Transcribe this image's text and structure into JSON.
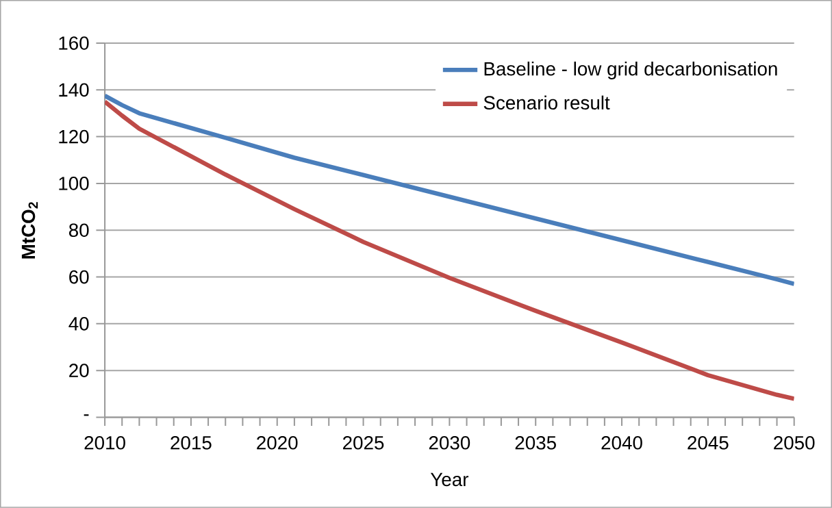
{
  "chart_data": {
    "type": "line",
    "xlabel": "Year",
    "ylabel": "MtCO$_{2}$",
    "x": [
      2010,
      2011,
      2012,
      2017,
      2021,
      2025,
      2030,
      2035,
      2040,
      2045,
      2049,
      2050
    ],
    "series": [
      {
        "name": "Baseline - low grid decarbonisation",
        "color": "#4a7ebb",
        "values": [
          137.5,
          133.5,
          130,
          119.5,
          111,
          103.6,
          94.3,
          85,
          75.7,
          66.4,
          59,
          57
        ]
      },
      {
        "name": "Scenario result",
        "color": "#be4b48",
        "values": [
          135,
          129,
          123.4,
          103.8,
          89,
          75,
          59.6,
          45.5,
          32,
          18,
          9.6,
          7.9
        ]
      }
    ],
    "xlim": [
      2010,
      2050
    ],
    "xticks": [
      2010,
      {
        "value": 2011,
        "label": null
      },
      {
        "value": 2012,
        "label": null
      },
      {
        "value": 2013,
        "label": null
      },
      {
        "value": 2014,
        "label": null
      },
      2015,
      {
        "value": 2016,
        "label": null
      },
      {
        "value": 2017,
        "label": null
      },
      {
        "value": 2018,
        "label": null
      },
      {
        "value": 2019,
        "label": null
      },
      2020,
      {
        "value": 2021,
        "label": null
      },
      {
        "value": 2022,
        "label": null
      },
      {
        "value": 2023,
        "label": null
      },
      {
        "value": 2024,
        "label": null
      },
      2025,
      {
        "value": 2026,
        "label": null
      },
      {
        "value": 2027,
        "label": null
      },
      {
        "value": 2028,
        "label": null
      },
      {
        "value": 2029,
        "label": null
      },
      2030,
      {
        "value": 2031,
        "label": null
      },
      {
        "value": 2032,
        "label": null
      },
      {
        "value": 2033,
        "label": null
      },
      {
        "value": 2034,
        "label": null
      },
      2035,
      {
        "value": 2036,
        "label": null
      },
      {
        "value": 2037,
        "label": null
      },
      {
        "value": 2038,
        "label": null
      },
      {
        "value": 2039,
        "label": null
      },
      2040,
      {
        "value": 2041,
        "label": null
      },
      {
        "value": 2042,
        "label": null
      },
      {
        "value": 2043,
        "label": null
      },
      {
        "value": 2044,
        "label": null
      },
      2045,
      {
        "value": 2046,
        "label": null
      },
      {
        "value": 2047,
        "label": null
      },
      {
        "value": 2048,
        "label": null
      },
      {
        "value": 2049,
        "label": null
      },
      2050
    ],
    "ylim": [
      0,
      160
    ],
    "yticks": [
      {
        "value": 0,
        "label": "-"
      },
      20,
      40,
      60,
      80,
      100,
      120,
      140,
      160
    ],
    "grid": "y",
    "legend": "top right",
    "marker": "none",
    "line_style": "solid"
  }
}
